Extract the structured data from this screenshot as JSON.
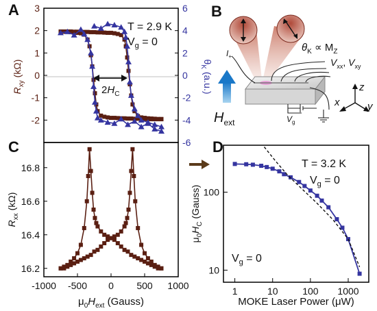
{
  "figure": {
    "panels": {
      "A": {
        "letter": "A",
        "temp": "T = 2.9 K",
        "vg_main": "V",
        "vg_sub": "g",
        "vg_rest": " = 0",
        "arrow_label_pre": "2",
        "arrow_label_H": "H",
        "arrow_label_sub": "C",
        "ylabel_left_main": "R",
        "ylabel_left_sub": "xy",
        "ylabel_left_unit": " (kΩ)",
        "ylabel_right_main": "θ",
        "ylabel_right_sub": "K",
        "ylabel_right_unit": " (a.u.)"
      },
      "B": {
        "letter": "B",
        "theta": "θ",
        "theta_sub": "K",
        "propto": " ∝ M",
        "m_sub": "Z",
        "vxx": "V",
        "vxx_sub": "xx",
        "comma": ", ",
        "vxy": "V",
        "vxy_sub": "xy",
        "ip": "I",
        "ip_sub": "+",
        "vg": "V",
        "vg_sub": "g",
        "hext": "H",
        "hext_sub": "ext",
        "ax_x": "x",
        "ax_y": "y",
        "ax_z": "z"
      },
      "C": {
        "letter": "C",
        "ylabel_main": "R",
        "ylabel_sub": "xx",
        "ylabel_unit": " (kΩ)",
        "xlabel_mu": "μ",
        "xlabel_0": "0",
        "xlabel_H": "H",
        "xlabel_sub": "ext",
        "xlabel_unit": " (Gauss)"
      },
      "D": {
        "letter": "D",
        "temp": "T = 3.2 K",
        "vg": "V",
        "vg_sub": "g",
        "vg_rest": " = 0",
        "vg2": "V",
        "vg2_sub": "g",
        "vg2_rest": " = 0",
        "ylabel_mu": "μ",
        "ylabel_0": "0",
        "ylabel_H": "H",
        "ylabel_sub": "C",
        "ylabel_unit": " (Gauss)",
        "xlabel": "MOKE Laser Power (μW)"
      }
    }
  },
  "colors": {
    "rxy": "#5a1f12",
    "kerr": "#3535a0",
    "rxx": "#5a1f12",
    "hc": "#3535a0",
    "arrow": "#5a3a1a"
  },
  "chart_data": [
    {
      "panel": "A",
      "type": "scatter",
      "xlim": [
        -1000,
        1000
      ],
      "left_axis": {
        "ylim": [
          -3,
          3
        ],
        "ticks": [
          "-2",
          "-1",
          "0",
          "1",
          "2",
          "3"
        ]
      },
      "right_axis": {
        "ylim": [
          -6,
          6
        ],
        "ticks": [
          "-6",
          "-4",
          "-2",
          "0",
          "2",
          "4",
          "6"
        ]
      },
      "series": [
        {
          "marker": "square",
          "axis": "left",
          "x": [
            -750,
            -700,
            -650,
            -600,
            -550,
            -500,
            -450,
            -400,
            -350,
            -320,
            -300,
            -280,
            -260,
            -240,
            -220,
            -200,
            -150,
            -100,
            -50,
            0,
            50,
            100,
            150,
            200,
            250,
            300,
            350,
            400,
            450,
            500,
            550,
            600,
            650,
            700,
            750
          ],
          "y": [
            1.95,
            1.95,
            1.94,
            1.93,
            1.92,
            1.9,
            1.88,
            1.82,
            1.6,
            1.3,
            0.9,
            0.4,
            -0.2,
            -0.8,
            -1.3,
            -1.6,
            -1.8,
            -1.85,
            -1.88,
            -1.9,
            -1.9,
            -1.91,
            -1.92,
            -1.92,
            -1.93,
            -1.93,
            -1.94,
            -1.94,
            -1.95,
            -1.95,
            -1.95,
            -1.96,
            -1.96,
            -1.96,
            -1.96
          ]
        },
        {
          "marker": "square",
          "axis": "left",
          "x": [
            750,
            700,
            650,
            600,
            550,
            500,
            450,
            400,
            350,
            320,
            300,
            280,
            260,
            240,
            220,
            200,
            150,
            100,
            50,
            0,
            -50,
            -100,
            -150,
            -200,
            -250,
            -300,
            -350,
            -400,
            -450,
            -500,
            -550,
            -600,
            -650,
            -700,
            -750
          ],
          "y": [
            -1.95,
            -1.95,
            -1.94,
            -1.93,
            -1.92,
            -1.9,
            -1.88,
            -1.82,
            -1.6,
            -1.3,
            -0.9,
            -0.4,
            0.2,
            0.8,
            1.3,
            1.6,
            1.8,
            1.85,
            1.88,
            1.9,
            1.9,
            1.91,
            1.92,
            1.92,
            1.93,
            1.93,
            1.94,
            1.94,
            1.95,
            1.95,
            1.95,
            1.96,
            1.96,
            1.96,
            1.96
          ]
        },
        {
          "marker": "triangle",
          "axis": "right",
          "x": [
            -750,
            -650,
            -550,
            -450,
            -400,
            -350,
            -300,
            -280,
            -260,
            -240,
            -220,
            -200,
            -150,
            -50,
            50,
            150,
            250,
            350,
            450,
            550,
            650,
            750
          ],
          "y": [
            3.8,
            3.9,
            3.6,
            4.1,
            3.7,
            3.2,
            2.0,
            0.8,
            -1.0,
            -2.4,
            -3.2,
            -3.8,
            -4.0,
            -4.2,
            -4.3,
            -3.9,
            -4.4,
            -4.1,
            -4.6,
            -4.3,
            -4.8,
            -5.0
          ]
        },
        {
          "marker": "triangle",
          "axis": "right",
          "x": [
            750,
            650,
            550,
            450,
            400,
            350,
            300,
            280,
            260,
            240,
            220,
            200,
            150,
            50,
            -50,
            -150,
            -250
          ],
          "y": [
            -4.6,
            -4.4,
            -4.2,
            -4.0,
            -3.6,
            -3.0,
            -1.8,
            -0.6,
            1.2,
            2.6,
            3.4,
            3.9,
            4.3,
            4.5,
            4.6,
            4.2,
            4.4
          ]
        }
      ]
    },
    {
      "panel": "C",
      "type": "line",
      "xlabel": "μ0Hext (Gauss)",
      "ylabel": "Rxx (kΩ)",
      "xlim": [
        -1000,
        1000
      ],
      "ylim": [
        16.15,
        16.95
      ],
      "xticks": [
        "-1000",
        "-500",
        "0",
        "500",
        "1000"
      ],
      "yticks": [
        "16.2",
        "16.4",
        "16.6",
        "16.8"
      ],
      "series": [
        {
          "x": [
            -750,
            -700,
            -650,
            -600,
            -550,
            -500,
            -450,
            -400,
            -360,
            -340,
            -320,
            -300,
            -280,
            -260,
            -240,
            -220,
            -200,
            -150,
            -100,
            -50,
            0,
            50,
            100,
            150,
            200,
            250,
            300,
            350,
            400,
            450,
            500,
            550,
            600,
            650,
            700,
            750
          ],
          "y": [
            16.2,
            16.21,
            16.22,
            16.24,
            16.26,
            16.29,
            16.34,
            16.44,
            16.6,
            16.75,
            16.91,
            16.78,
            16.65,
            16.55,
            16.5,
            16.47,
            16.45,
            16.42,
            16.4,
            16.39,
            16.38,
            16.37,
            16.35,
            16.33,
            16.31,
            16.3,
            16.28,
            16.27,
            16.26,
            16.25,
            16.24,
            16.23,
            16.22,
            16.21,
            16.2,
            16.2
          ]
        },
        {
          "x": [
            750,
            700,
            650,
            600,
            550,
            500,
            450,
            400,
            360,
            340,
            320,
            300,
            280,
            260,
            240,
            220,
            200,
            150,
            100,
            50,
            0,
            -50,
            -100,
            -150,
            -200,
            -250,
            -300,
            -350,
            -400,
            -450,
            -500,
            -550,
            -600,
            -650,
            -700,
            -750
          ],
          "y": [
            16.2,
            16.21,
            16.22,
            16.24,
            16.26,
            16.29,
            16.34,
            16.44,
            16.6,
            16.75,
            16.91,
            16.78,
            16.65,
            16.55,
            16.5,
            16.47,
            16.45,
            16.42,
            16.4,
            16.39,
            16.38,
            16.37,
            16.35,
            16.33,
            16.31,
            16.3,
            16.28,
            16.27,
            16.26,
            16.25,
            16.24,
            16.23,
            16.22,
            16.21,
            16.2,
            16.2
          ]
        }
      ]
    },
    {
      "panel": "D",
      "type": "line",
      "log_x": true,
      "log_y": true,
      "xlabel": "MOKE Laser Power (μW)",
      "ylabel": "μ0HC (Gauss)",
      "xlim": [
        0.5,
        3500
      ],
      "ylim": [
        7,
        400
      ],
      "xticks": [
        "1",
        "10",
        "100",
        "1000"
      ],
      "yticks": [
        "10",
        "100"
      ],
      "series": [
        {
          "x": [
            1,
            2,
            3,
            5,
            7,
            10,
            15,
            20,
            30,
            50,
            70,
            100,
            150,
            200,
            300,
            500,
            700,
            1000,
            2000
          ],
          "y": [
            230,
            228,
            225,
            218,
            210,
            200,
            185,
            170,
            155,
            135,
            120,
            105,
            90,
            78,
            64,
            45,
            35,
            25,
            9
          ]
        },
        {
          "style": "dashed",
          "x": [
            6,
            12,
            25,
            60,
            150,
            400,
            1000,
            2000
          ],
          "y": [
            380,
            250,
            165,
            110,
            72,
            44,
            25,
            11
          ]
        }
      ],
      "arrow_value": 230
    }
  ]
}
